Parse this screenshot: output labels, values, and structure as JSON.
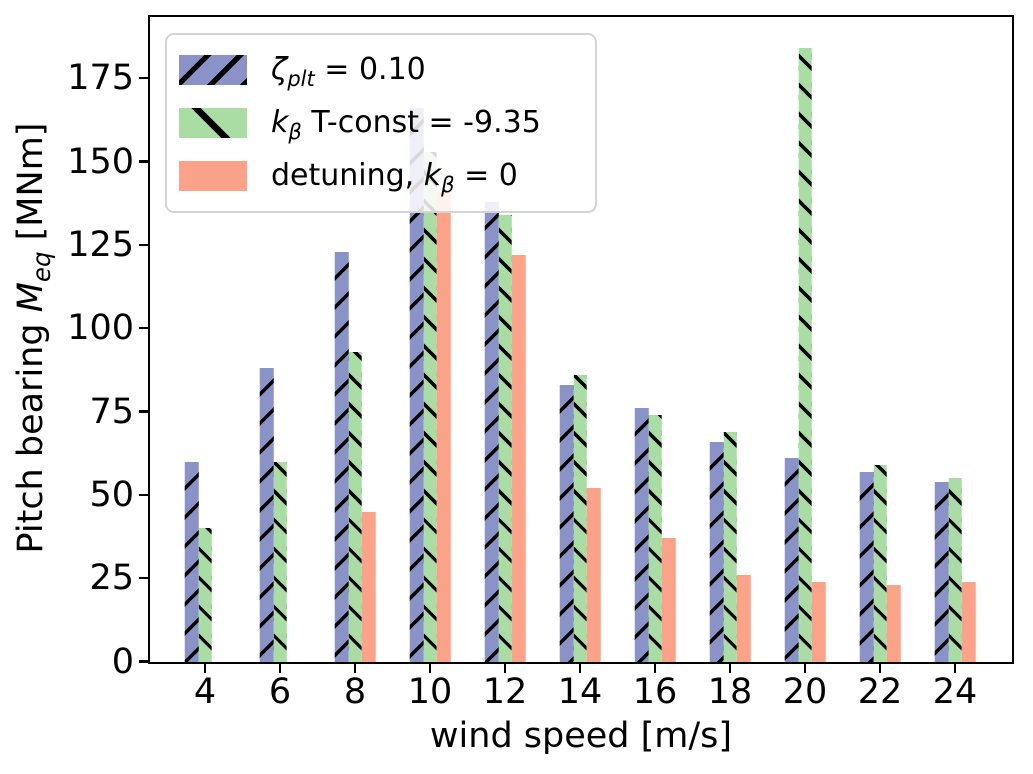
{
  "figure": {
    "background": "#ffffff",
    "hatch_color": "#000000",
    "spine_color": "#000000"
  },
  "labels": {
    "xlabel": "wind speed [m/s]",
    "ylabel_pre": "Pitch bearing ",
    "ylabel_var": "M",
    "ylabel_sub": "eq",
    "ylabel_post": " [MNm]"
  },
  "legend": {
    "position": "upper left",
    "items": [
      {
        "swatch": "blue-hatched-slash",
        "pre": "",
        "var": "ζ",
        "sub": "plt",
        "rest": " = 0.10"
      },
      {
        "swatch": "green-hatched-backslash",
        "pre": "",
        "var": "k",
        "sub": "β",
        "rest": " T-const = -9.35"
      },
      {
        "swatch": "salmon-solid",
        "pre": "detuning, ",
        "var": "k",
        "sub": "β",
        "rest": " = 0"
      }
    ]
  },
  "chart_data": {
    "type": "bar",
    "title": "",
    "xlabel": "wind speed [m/s]",
    "ylabel": "Pitch bearing M_eq [MNm]",
    "categories": [
      "4",
      "6",
      "8",
      "10",
      "12",
      "14",
      "16",
      "18",
      "20",
      "22",
      "24"
    ],
    "yticks": [
      0,
      25,
      50,
      75,
      100,
      125,
      150,
      175
    ],
    "ylim": [
      0,
      193.2
    ],
    "grid": false,
    "legend_position": "upper left",
    "series": [
      {
        "name": "ζ_plt = 0.10",
        "color": "#8a93c8",
        "hatch": "/",
        "values": [
          60,
          88,
          123,
          166,
          138,
          83,
          76,
          66,
          61,
          57,
          54
        ]
      },
      {
        "name": "k_β T-const = -9.35",
        "color": "#aadda4",
        "hatch": "\\",
        "values": [
          40,
          60,
          93,
          153,
          134,
          86,
          74,
          69,
          184,
          59,
          55
        ]
      },
      {
        "name": "detuning, k_β = 0",
        "color": "#fca289",
        "hatch": "",
        "values": [
          0,
          0,
          45,
          141,
          122,
          52,
          37,
          26,
          24,
          23,
          24
        ]
      }
    ]
  }
}
